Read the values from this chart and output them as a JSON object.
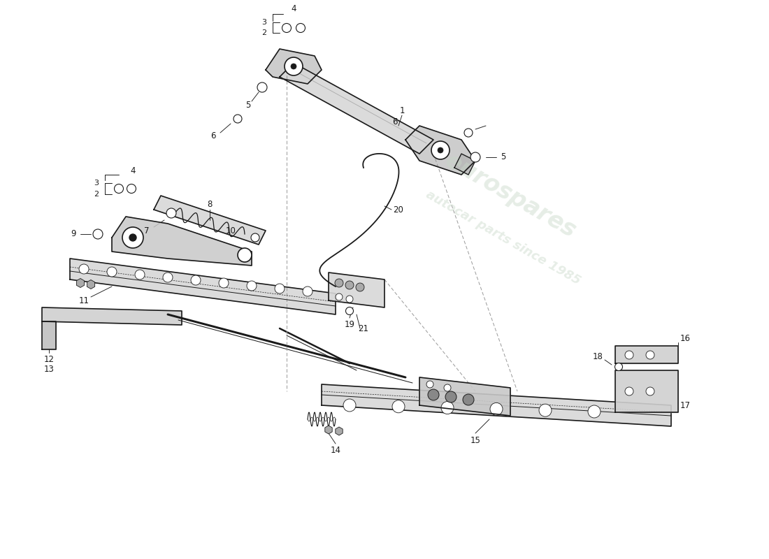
{
  "background_color": "#ffffff",
  "watermark_color_main": "#c8d8c8",
  "watermark_alpha": 0.45,
  "line_color": "#1a1a1a",
  "line_width": 1.2,
  "number_fontsize": 8.5
}
